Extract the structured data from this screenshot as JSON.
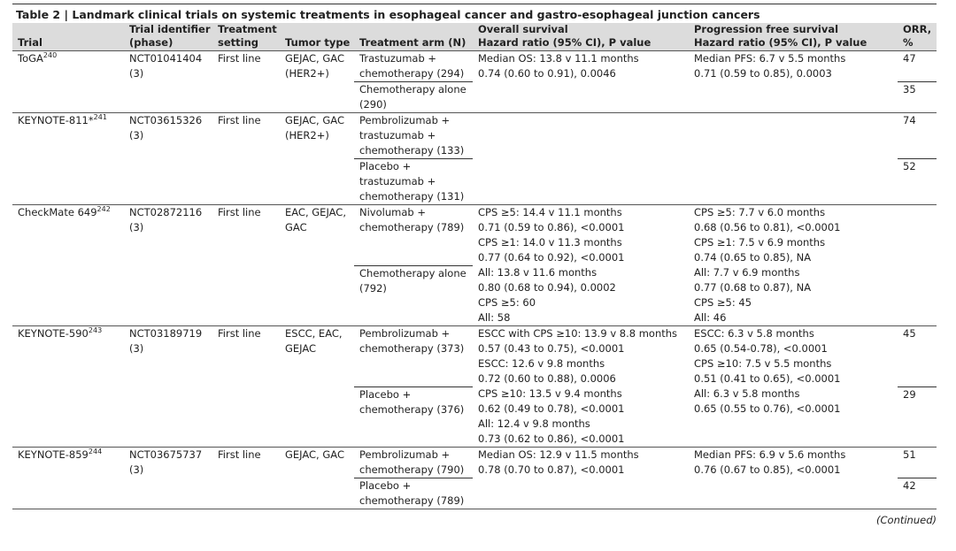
{
  "title": "Table 2 | Landmark clinical trials on systemic treatments in esophageal cancer and gastro-esophageal junction cancers",
  "columns": [
    [
      "Trial"
    ],
    [
      "Trial identifier",
      "(phase)"
    ],
    [
      "Treatment",
      "setting"
    ],
    [
      "Tumor type"
    ],
    [
      "Treatment arm (N)"
    ],
    [
      "Overall survival",
      "Hazard ratio (95% CI), P value"
    ],
    [
      "Progression free survival",
      "Hazard ratio (95% CI), P value"
    ],
    [
      "ORR,",
      "%"
    ]
  ],
  "trials": [
    {
      "name": "ToGA",
      "ref": "240",
      "identifier": "NCT01041404",
      "phase": "(3)",
      "setting": "First line",
      "tumor": "GEJAC, GAC (HER2+)",
      "arms": [
        {
          "arm": "Trastuzumab + chemotherapy (294)",
          "orr": 47
        },
        {
          "arm": "Chemotherapy alone (290)",
          "orr": 35
        }
      ],
      "os": [
        "Median OS: 13.8 v 11.1 months",
        "0.74 (0.60 to 0.91), 0.0046"
      ],
      "pfs": [
        "Median PFS: 6.7 v 5.5 months",
        "0.71 (0.59 to 0.85), 0.0003"
      ]
    },
    {
      "name": "KEYNOTE-811*",
      "ref": "241",
      "identifier": "NCT03615326",
      "phase": "(3)",
      "setting": "First line",
      "tumor": "GEJAC, GAC (HER2+)",
      "arms": [
        {
          "arm": "Pembrolizumab + trastuzumab + chemotherapy (133)",
          "orr": 74
        },
        {
          "arm": "Placebo + trastuzumab + chemotherapy (131)",
          "orr": 52
        }
      ],
      "os": [],
      "pfs": []
    },
    {
      "name": "CheckMate 649",
      "ref": "242",
      "identifier": "NCT02872116",
      "phase": "(3)",
      "setting": "First line",
      "tumor": "EAC, GEJAC, GAC",
      "arms": [
        {
          "arm": "Nivolumab + chemotherapy (789)"
        },
        {
          "arm": "Chemotherapy alone (792)"
        }
      ],
      "os": [
        "CPS ≥5: 14.4 v 11.1 months",
        "0.71 (0.59 to 0.86), <0.0001",
        "CPS ≥1: 14.0 v 11.3 months",
        "0.77 (0.64 to 0.92), <0.0001",
        "All: 13.8 v 11.6 months",
        "0.80 (0.68 to 0.94), 0.0002",
        "CPS ≥5: 60",
        "All: 58"
      ],
      "pfs": [
        "CPS ≥5: 7.7 v 6.0 months",
        "0.68 (0.56 to 0.81), <0.0001",
        "CPS ≥1: 7.5 v 6.9 months",
        "0.74 (0.65 to 0.85), NA",
        "All: 7.7 v 6.9 months",
        "0.77 (0.68 to 0.87), NA",
        "CPS ≥5: 45",
        "All: 46"
      ]
    },
    {
      "name": "KEYNOTE-590",
      "ref": "243",
      "identifier": "NCT03189719",
      "phase": "(3)",
      "setting": "First line",
      "tumor": "ESCC, EAC, GEJAC",
      "arms": [
        {
          "arm": "Pembrolizumab + chemotherapy (373)",
          "orr": 45
        },
        {
          "arm": "Placebo + chemotherapy (376)",
          "orr": 29
        }
      ],
      "os": [
        "ESCC with CPS ≥10: 13.9 v 8.8 months",
        "0.57 (0.43 to 0.75), <0.0001",
        "ESCC: 12.6 v 9.8 months",
        "0.72 (0.60 to 0.88), 0.0006",
        "CPS ≥10: 13.5 v 9.4 months",
        "0.62 (0.49 to 0.78), <0.0001",
        "All: 12.4 v 9.8 months",
        "0.73 (0.62 to 0.86), <0.0001"
      ],
      "pfs": [
        "ESCC: 6.3 v 5.8 months",
        "0.65 (0.54-0.78), <0.0001",
        "CPS ≥10: 7.5 v 5.5 months",
        "0.51 (0.41 to 0.65), <0.0001",
        "All: 6.3 v 5.8 months",
        "0.65 (0.55 to 0.76), <0.0001"
      ]
    },
    {
      "name": "KEYNOTE-859",
      "ref": "244",
      "identifier": "NCT03675737",
      "phase": "(3)",
      "setting": "First line",
      "tumor": "GEJAC, GAC",
      "arms": [
        {
          "arm": "Pembrolizumab + chemotherapy (790)",
          "orr": 51
        },
        {
          "arm": "Placebo + chemotherapy (789)",
          "orr": 42
        }
      ],
      "os": [
        "Median OS: 12.9 v 11.5 months",
        "0.78 (0.70 to 0.87), <0.0001"
      ],
      "pfs": [
        "Median PFS: 6.9 v 5.6 months",
        "0.76 (0.67 to 0.85), <0.0001"
      ]
    }
  ],
  "footer": "(Continued)"
}
